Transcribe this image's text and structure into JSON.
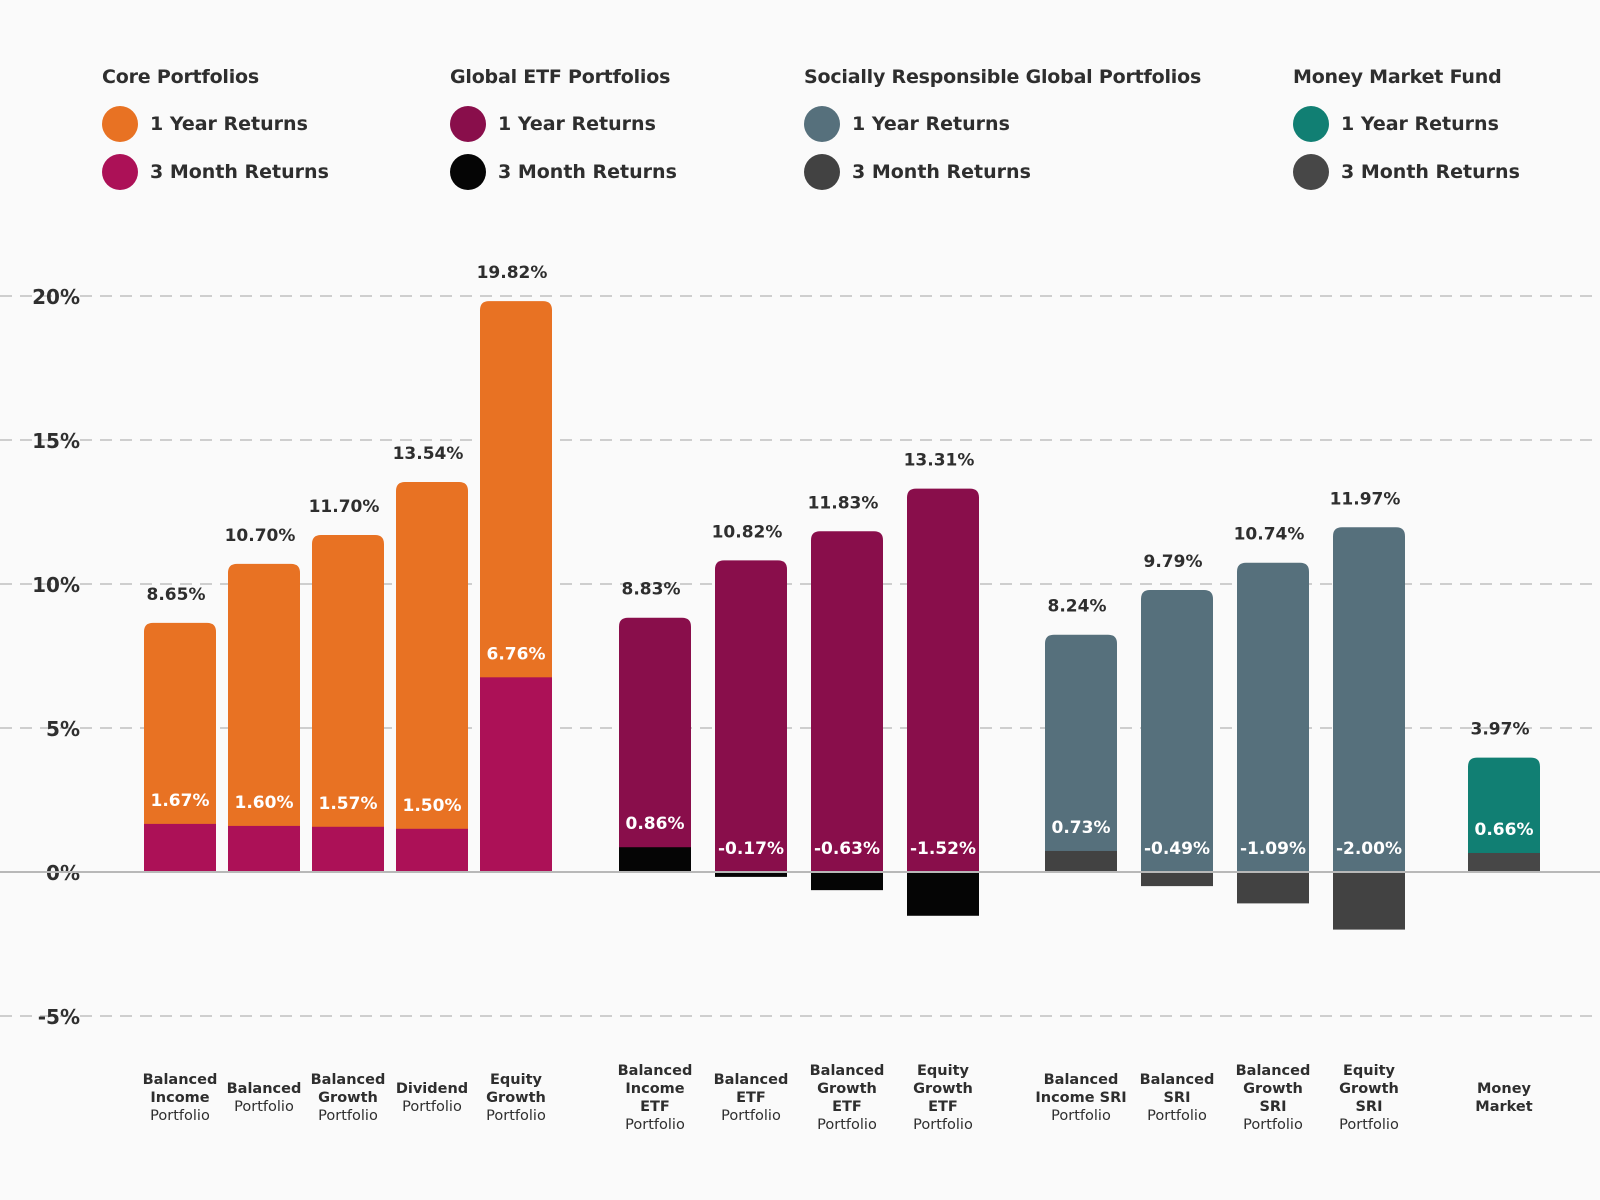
{
  "colors": {
    "core_1y": "#e87223",
    "core_3m": "#ac1157",
    "etf_1y": "#890e4b",
    "etf_3m": "#050505",
    "sri_1y": "#56707c",
    "sri_3m": "#424242",
    "mm_1y": "#117f73",
    "mm_3m": "#474747",
    "grid": "#b5b5b5",
    "axis_text": "#2f2f2f"
  },
  "legend": {
    "groups": [
      {
        "title": "Core Portfolios",
        "one_year_label": "1 Year Returns",
        "three_month_label": "3 Month Returns",
        "one_year_color": "#e87223",
        "three_month_color": "#ac1157"
      },
      {
        "title": "Global ETF Portfolios",
        "one_year_label": "1 Year Returns",
        "three_month_label": "3 Month Returns",
        "one_year_color": "#890e4b",
        "three_month_color": "#050505"
      },
      {
        "title": "Socially Responsible Global Portfolios",
        "one_year_label": "1 Year Returns",
        "three_month_label": "3 Month Returns",
        "one_year_color": "#56707c",
        "three_month_color": "#424242"
      },
      {
        "title": "Money Market Fund",
        "one_year_label": "1 Year Returns",
        "three_month_label": "3 Month Returns",
        "one_year_color": "#117f73",
        "three_month_color": "#474747"
      }
    ]
  },
  "chart_data": {
    "type": "bar",
    "title": "",
    "xlabel": "",
    "ylabel": "",
    "ylim": [
      -5,
      20
    ],
    "yticks": [
      20,
      15,
      10,
      5,
      0,
      -5
    ],
    "ytick_labels": [
      "20%",
      "15%",
      "10%",
      "5%",
      "0%",
      "-5%"
    ],
    "grid": true,
    "legend_position": "top",
    "series": [
      {
        "name": "1 Year Returns",
        "values": [
          8.65,
          10.7,
          11.7,
          13.54,
          19.82,
          8.83,
          10.82,
          11.83,
          13.31,
          8.24,
          9.79,
          10.74,
          11.97,
          3.97
        ]
      },
      {
        "name": "3 Month Returns",
        "values": [
          1.67,
          1.6,
          1.57,
          1.5,
          6.76,
          0.86,
          -0.17,
          -0.63,
          -1.52,
          0.73,
          -0.49,
          -1.09,
          -2.0,
          0.66
        ]
      }
    ],
    "categories": [
      {
        "group": 0,
        "label_lines": [
          {
            "text": "Balanced",
            "bold": true
          },
          {
            "text": "Income",
            "bold": true
          },
          {
            "text": "Portfolio",
            "bold": false
          }
        ],
        "one_year_label": "8.65%",
        "three_month_label": "1.67%"
      },
      {
        "group": 0,
        "label_lines": [
          {
            "text": "Balanced",
            "bold": true
          },
          {
            "text": "Portfolio",
            "bold": false
          }
        ],
        "one_year_label": "10.70%",
        "three_month_label": "1.60%"
      },
      {
        "group": 0,
        "label_lines": [
          {
            "text": "Balanced",
            "bold": true
          },
          {
            "text": "Growth",
            "bold": true
          },
          {
            "text": "Portfolio",
            "bold": false
          }
        ],
        "one_year_label": "11.70%",
        "three_month_label": "1.57%"
      },
      {
        "group": 0,
        "label_lines": [
          {
            "text": "Dividend",
            "bold": true
          },
          {
            "text": "Portfolio",
            "bold": false
          }
        ],
        "one_year_label": "13.54%",
        "three_month_label": "1.50%"
      },
      {
        "group": 0,
        "label_lines": [
          {
            "text": "Equity",
            "bold": true
          },
          {
            "text": "Growth",
            "bold": true
          },
          {
            "text": "Portfolio",
            "bold": false
          }
        ],
        "one_year_label": "19.82%",
        "three_month_label": "6.76%"
      },
      {
        "group": 1,
        "label_lines": [
          {
            "text": "Balanced",
            "bold": true
          },
          {
            "text": "Income",
            "bold": true
          },
          {
            "text": "ETF",
            "bold": true
          },
          {
            "text": "Portfolio",
            "bold": false
          }
        ],
        "one_year_label": "8.83%",
        "three_month_label": "0.86%"
      },
      {
        "group": 1,
        "label_lines": [
          {
            "text": "Balanced",
            "bold": true
          },
          {
            "text": "ETF",
            "bold": true
          },
          {
            "text": "Portfolio",
            "bold": false
          }
        ],
        "one_year_label": "10.82%",
        "three_month_label": "-0.17%"
      },
      {
        "group": 1,
        "label_lines": [
          {
            "text": "Balanced",
            "bold": true
          },
          {
            "text": "Growth",
            "bold": true
          },
          {
            "text": "ETF",
            "bold": true
          },
          {
            "text": "Portfolio",
            "bold": false
          }
        ],
        "one_year_label": "11.83%",
        "three_month_label": "-0.63%"
      },
      {
        "group": 1,
        "label_lines": [
          {
            "text": "Equity",
            "bold": true
          },
          {
            "text": "Growth",
            "bold": true
          },
          {
            "text": "ETF",
            "bold": true
          },
          {
            "text": "Portfolio",
            "bold": false
          }
        ],
        "one_year_label": "13.31%",
        "three_month_label": "-1.52%"
      },
      {
        "group": 2,
        "label_lines": [
          {
            "text": "Balanced",
            "bold": true
          },
          {
            "text": "Income SRI",
            "bold": true
          },
          {
            "text": "Portfolio",
            "bold": false
          }
        ],
        "one_year_label": "8.24%",
        "three_month_label": "0.73%"
      },
      {
        "group": 2,
        "label_lines": [
          {
            "text": "Balanced",
            "bold": true
          },
          {
            "text": "SRI",
            "bold": true
          },
          {
            "text": "Portfolio",
            "bold": false
          }
        ],
        "one_year_label": "9.79%",
        "three_month_label": "-0.49%"
      },
      {
        "group": 2,
        "label_lines": [
          {
            "text": "Balanced",
            "bold": true
          },
          {
            "text": "Growth",
            "bold": true
          },
          {
            "text": "SRI",
            "bold": true
          },
          {
            "text": "Portfolio",
            "bold": false
          }
        ],
        "one_year_label": "10.74%",
        "three_month_label": "-1.09%"
      },
      {
        "group": 2,
        "label_lines": [
          {
            "text": "Equity",
            "bold": true
          },
          {
            "text": "Growth",
            "bold": true
          },
          {
            "text": "SRI",
            "bold": true
          },
          {
            "text": "Portfolio",
            "bold": false
          }
        ],
        "one_year_label": "11.97%",
        "three_month_label": "-2.00%"
      },
      {
        "group": 3,
        "label_lines": [
          {
            "text": "Money",
            "bold": true
          },
          {
            "text": "Market",
            "bold": true
          }
        ],
        "one_year_label": "3.97%",
        "three_month_label": "0.66%"
      }
    ]
  }
}
